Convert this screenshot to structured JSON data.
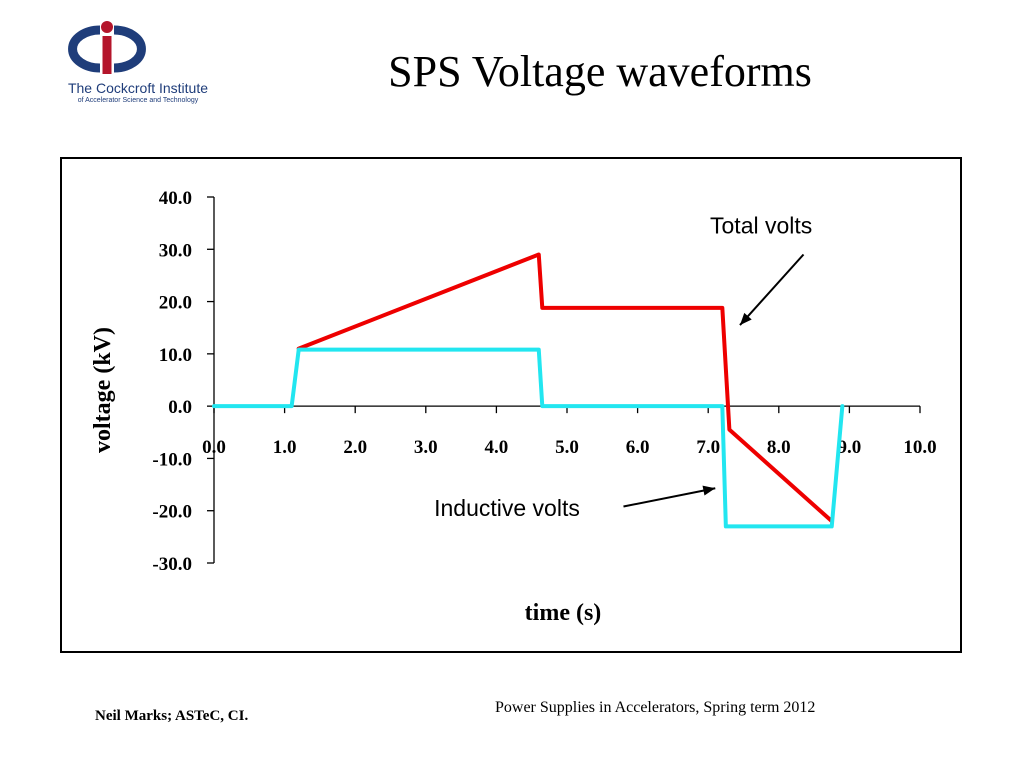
{
  "slide": {
    "title": "SPS Voltage waveforms",
    "logo_line1": "The Cockcroft Institute",
    "logo_line2": "of Accelerator Science and Technology",
    "footer_left": "Neil Marks; ASTeC, CI.",
    "footer_right": "Power Supplies in Accelerators, Spring term 2012"
  },
  "colors": {
    "logo_blue": "#1f3d7a",
    "logo_red": "#b4152b",
    "total": "#ee0000",
    "inductive": "#22e6f0"
  },
  "chart_data": {
    "type": "line",
    "xlabel": "time (s)",
    "ylabel": "voltage (kV)",
    "xlim": [
      0,
      10
    ],
    "ylim": [
      -30,
      40
    ],
    "x_ticks": [
      "0.0",
      "1.0",
      "2.0",
      "3.0",
      "4.0",
      "5.0",
      "6.0",
      "7.0",
      "8.0",
      "9.0",
      "10.0"
    ],
    "y_ticks": [
      "40.0",
      "30.0",
      "20.0",
      "10.0",
      "0.0",
      "-10.0",
      "-20.0",
      "-30.0"
    ],
    "grid": false,
    "series": [
      {
        "color": "#ee0000",
        "x": [
          1.2,
          4.6,
          4.65,
          7.2,
          7.3,
          8.75
        ],
        "y": [
          11.0,
          29.0,
          18.8,
          18.8,
          -4.5,
          -22.0
        ]
      },
      {
        "color": "#22e6f0",
        "x": [
          0.0,
          1.1,
          1.2,
          4.6,
          4.65,
          7.2,
          7.25,
          8.75,
          8.9
        ],
        "y": [
          0.0,
          0.0,
          10.8,
          10.8,
          0.0,
          0.0,
          -23.0,
          -23.0,
          0.0
        ]
      }
    ],
    "annotations": [
      {
        "text": "Total volts",
        "text_x": 7.75,
        "text_y": 33.0,
        "arrow_from": [
          8.35,
          29.0
        ],
        "arrow_to": [
          7.45,
          15.5
        ]
      },
      {
        "text": "Inductive volts",
        "text_x": 4.15,
        "text_y": -21.0,
        "arrow_from": [
          5.8,
          -19.2
        ],
        "arrow_to": [
          7.1,
          -15.7
        ]
      }
    ]
  }
}
